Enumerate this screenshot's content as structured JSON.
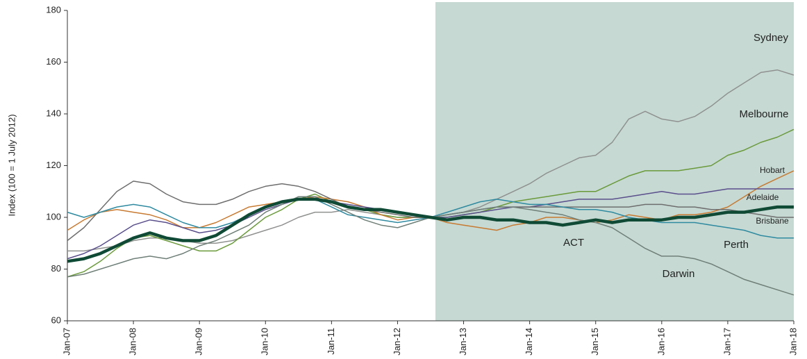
{
  "chart_data": {
    "type": "line",
    "y_label": "Index (100 = 1 July 2012)",
    "categories": [
      "Jan-07",
      null,
      null,
      null,
      "Jan-08",
      null,
      null,
      null,
      "Jan-09",
      null,
      null,
      null,
      "Jan-10",
      null,
      null,
      null,
      "Jan-11",
      null,
      null,
      null,
      "Jan-12",
      null,
      null,
      null,
      "Jan-13",
      null,
      null,
      null,
      "Jan-14",
      null,
      null,
      null,
      "Jan-15",
      null,
      null,
      null,
      "Jan-16",
      null,
      null,
      null,
      "Jan-17",
      null,
      null,
      null,
      "Jan-18"
    ],
    "ylim": [
      60,
      180
    ],
    "yticks": [
      60,
      80,
      100,
      120,
      140,
      160,
      180
    ],
    "shade_from": 22,
    "shade_color": "#c6d9d3",
    "series": [
      {
        "name": "Sydney",
        "color": "#8f918f",
        "values": [
          87,
          87,
          88,
          89,
          91,
          92,
          92,
          91,
          90,
          90,
          91,
          93,
          95,
          97,
          100,
          102,
          102,
          103,
          102,
          101,
          100,
          100,
          100,
          101,
          102,
          104,
          107,
          110,
          113,
          117,
          120,
          123,
          124,
          129,
          138,
          141,
          138,
          137,
          139,
          143,
          148,
          152,
          156,
          157,
          155
        ]
      },
      {
        "name": "Melbourne",
        "color": "#6a9a3a",
        "values": [
          77,
          79,
          83,
          88,
          92,
          93,
          91,
          89,
          87,
          87,
          90,
          95,
          100,
          103,
          107,
          109,
          106,
          104,
          103,
          101,
          100,
          100,
          100,
          100,
          101,
          102,
          104,
          106,
          107,
          108,
          109,
          110,
          110,
          113,
          116,
          118,
          118,
          118,
          119,
          120,
          124,
          126,
          129,
          131,
          134
        ]
      },
      {
        "name": "Hobart",
        "color": "#c87a30",
        "values": [
          95,
          99,
          102,
          103,
          102,
          101,
          99,
          96,
          96,
          98,
          101,
          104,
          105,
          106,
          107,
          108,
          107,
          106,
          104,
          101,
          99,
          100,
          100,
          98,
          97,
          96,
          95,
          97,
          98,
          100,
          100,
          99,
          98,
          99,
          101,
          100,
          99,
          101,
          101,
          102,
          104,
          108,
          112,
          115,
          118
        ]
      },
      {
        "name": "Adelaide",
        "color": "#5a4f8c",
        "values": [
          84,
          86,
          89,
          93,
          97,
          99,
          98,
          96,
          94,
          95,
          97,
          100,
          103,
          105,
          107,
          107,
          106,
          105,
          104,
          103,
          102,
          101,
          100,
          100,
          101,
          102,
          103,
          104,
          104,
          105,
          106,
          107,
          107,
          107,
          108,
          109,
          110,
          109,
          109,
          110,
          111,
          111,
          111,
          111,
          111
        ]
      },
      {
        "name": "Brisbane",
        "color": "#6e6e6e",
        "values": [
          91,
          96,
          103,
          110,
          114,
          113,
          109,
          106,
          105,
          105,
          107,
          110,
          112,
          113,
          112,
          110,
          107,
          104,
          103,
          102,
          101,
          100,
          100,
          101,
          102,
          103,
          104,
          104,
          104,
          104,
          104,
          104,
          104,
          104,
          104,
          105,
          105,
          104,
          104,
          103,
          103,
          102,
          101,
          100,
          100
        ]
      },
      {
        "name": "Perth",
        "color": "#2e8aa0",
        "values": [
          102,
          100,
          102,
          104,
          105,
          104,
          101,
          98,
          96,
          96,
          98,
          101,
          104,
          106,
          107,
          107,
          104,
          101,
          100,
          99,
          98,
          99,
          100,
          102,
          104,
          106,
          107,
          106,
          105,
          105,
          104,
          103,
          103,
          102,
          100,
          99,
          98,
          98,
          98,
          97,
          96,
          95,
          93,
          92,
          92
        ]
      },
      {
        "name": "Darwin",
        "color": "#6f7f78",
        "values": [
          77,
          78,
          80,
          82,
          84,
          85,
          84,
          86,
          89,
          91,
          94,
          97,
          102,
          105,
          108,
          108,
          105,
          102,
          99,
          97,
          96,
          98,
          100,
          101,
          102,
          103,
          104,
          104,
          103,
          102,
          101,
          99,
          98,
          96,
          92,
          88,
          85,
          85,
          84,
          82,
          79,
          76,
          74,
          72,
          70
        ]
      },
      {
        "name": "ACT",
        "color": "#0f4a35",
        "values": [
          83,
          84,
          86,
          89,
          92,
          94,
          92,
          91,
          91,
          93,
          97,
          101,
          104,
          106,
          107,
          107,
          106,
          104,
          103,
          103,
          102,
          101,
          100,
          99,
          100,
          100,
          99,
          99,
          98,
          98,
          97,
          98,
          99,
          98,
          99,
          99,
          99,
          100,
          100,
          101,
          102,
          102,
          103,
          104,
          104
        ]
      }
    ]
  }
}
